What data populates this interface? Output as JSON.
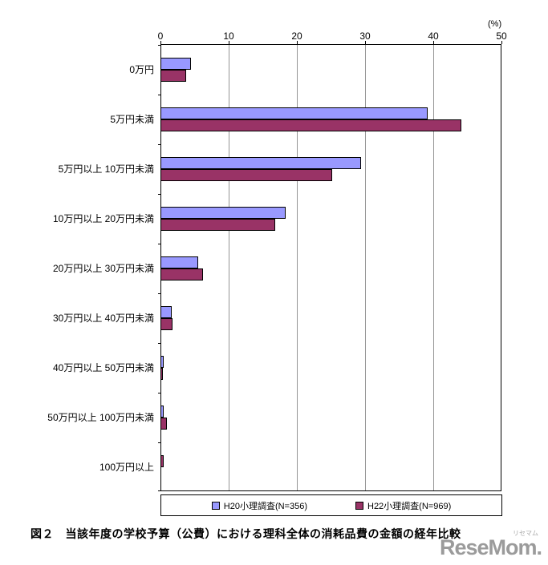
{
  "chart": {
    "percent_label": "(%)",
    "x_ticks": [
      0,
      10,
      20,
      30,
      40,
      50
    ],
    "caption": "図２　当該年度の学校予算（公費）における理科全体の消耗品費の金額の経年比較",
    "watermark": "ReseMom.",
    "watermark_small": "リセマム"
  },
  "chart_data": {
    "type": "bar",
    "orientation": "horizontal",
    "title": "図２　当該年度の学校予算（公費）における理科全体の消耗品費の金額の経年比較",
    "categories": [
      "0万円",
      "5万円未満",
      "5万円以上 10万円未満",
      "10万円以上 20万円未満",
      "20万円以上 30万円未満",
      "30万円以上 40万円未満",
      "40万円以上 50万円未満",
      "50万円以上 100万円未満",
      "100万円以上"
    ],
    "series": [
      {
        "name": "H20小理調査(N=356)",
        "color": "#9999ff",
        "values": [
          4.4,
          39,
          29.3,
          18.2,
          5.4,
          1.5,
          0.3,
          0.3,
          0
        ]
      },
      {
        "name": "H22小理調査(N=969)",
        "color": "#993366",
        "values": [
          3.6,
          44,
          25.1,
          16.7,
          6.1,
          1.6,
          0.2,
          0.8,
          0.3
        ]
      }
    ],
    "xlabel": "(%)",
    "ylabel": "",
    "xlim": [
      0,
      50
    ],
    "grid": true,
    "legend_position": "bottom"
  }
}
